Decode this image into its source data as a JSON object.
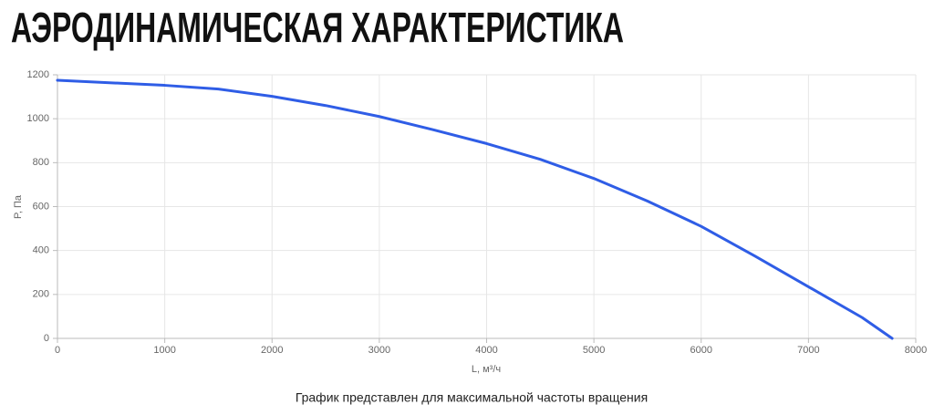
{
  "chart_data": {
    "type": "line",
    "title": "АЭРОДИНАМИЧЕСКАЯ ХАРАКТЕРИСТИКА",
    "x_label": "L, м³/ч",
    "y_label": "P, Па",
    "footnote": "График представлен для максимальной частоты вращения",
    "x": [
      0,
      1000,
      1500,
      2000,
      2500,
      3000,
      3500,
      4000,
      4500,
      5000,
      5500,
      6000,
      6500,
      7000,
      7500,
      7780
    ],
    "series": [
      {
        "color": "#2f5de6",
        "values": [
          1175,
          1152,
          1135,
          1102,
          1060,
          1010,
          950,
          887,
          815,
          728,
          625,
          510,
          375,
          235,
          95,
          0
        ]
      }
    ],
    "xlim": [
      0,
      8000
    ],
    "xticks": [
      0,
      1000,
      2000,
      3000,
      4000,
      5000,
      6000,
      7000,
      8000
    ],
    "ylim": [
      0,
      1200
    ],
    "yticks": [
      0,
      200,
      400,
      600,
      800,
      1000,
      1200
    ],
    "grid": true
  }
}
